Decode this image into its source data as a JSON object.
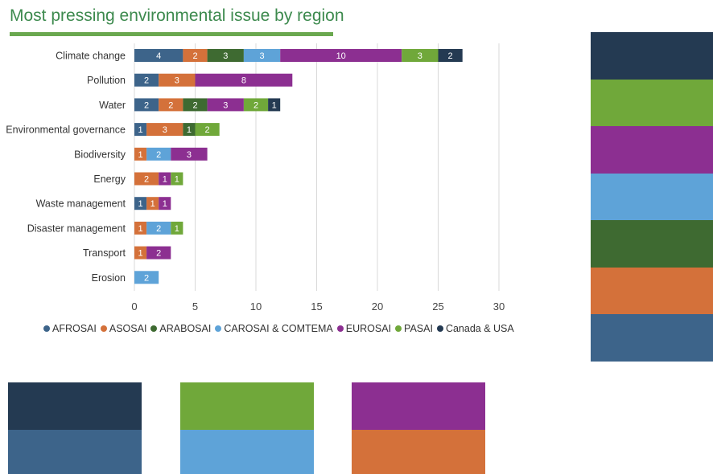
{
  "title": "Most pressing environmental issue by region",
  "colors": {
    "title_rule": "#6aa84f",
    "AFROSAI": "#3d648a",
    "ASOSAI": "#d4713a",
    "ARABOSAI": "#3e6a31",
    "CAROSAI & COMTEMA": "#5ea3d8",
    "EUROSAI": "#8c2f91",
    "PASAI": "#70a83a",
    "Canada & USA": "#243a52",
    "gridline": "#d9d9d9"
  },
  "chart_data": {
    "type": "bar",
    "orientation": "horizontal",
    "stacked": true,
    "title": "Most pressing environmental issue by region",
    "categories": [
      "Climate change",
      "Pollution",
      "Water",
      "Environmental governance",
      "Biodiversity",
      "Energy",
      "Waste management",
      "Disaster management",
      "Transport",
      "Erosion"
    ],
    "series": [
      {
        "name": "AFROSAI",
        "values": [
          4,
          2,
          2,
          1,
          0,
          0,
          1,
          0,
          0,
          0
        ]
      },
      {
        "name": "ASOSAI",
        "values": [
          2,
          3,
          2,
          3,
          1,
          2,
          1,
          1,
          1,
          0
        ]
      },
      {
        "name": "ARABOSAI",
        "values": [
          3,
          0,
          2,
          1,
          0,
          0,
          0,
          0,
          0,
          0
        ]
      },
      {
        "name": "CAROSAI & COMTEMA",
        "values": [
          3,
          0,
          0,
          0,
          2,
          0,
          0,
          2,
          0,
          2
        ]
      },
      {
        "name": "EUROSAI",
        "values": [
          10,
          8,
          3,
          0,
          3,
          1,
          1,
          0,
          2,
          0
        ]
      },
      {
        "name": "PASAI",
        "values": [
          3,
          0,
          2,
          2,
          0,
          1,
          0,
          1,
          0,
          0
        ]
      },
      {
        "name": "Canada & USA",
        "values": [
          2,
          0,
          1,
          0,
          0,
          0,
          0,
          0,
          0,
          0
        ]
      }
    ],
    "xlim": [
      0,
      30
    ],
    "xticks": [
      0,
      5,
      10,
      15,
      20,
      25,
      30
    ],
    "xlabel": "",
    "ylabel": "",
    "grid": true,
    "legend_position": "bottom",
    "data_labels": true
  },
  "swatches": {
    "right_column": [
      "Canada & USA",
      "PASAI",
      "EUROSAI",
      "CAROSAI & COMTEMA",
      "ARABOSAI",
      "ASOSAI",
      "AFROSAI"
    ],
    "bottom_row": [
      [
        "Canada & USA",
        "AFROSAI"
      ],
      [
        "PASAI",
        "CAROSAI & COMTEMA"
      ],
      [
        "EUROSAI",
        "ASOSAI"
      ]
    ]
  }
}
